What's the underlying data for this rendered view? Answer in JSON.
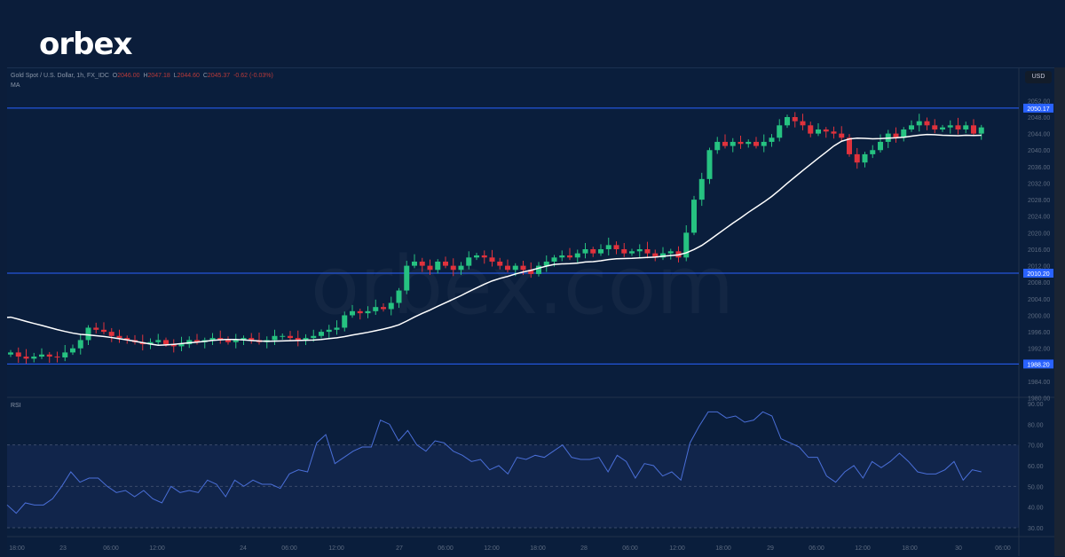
{
  "brand": {
    "logo": "orbex",
    "watermark": "orbex.com"
  },
  "legend": {
    "symbol": "Gold Spot / U.S. Dollar, 1h, FX_IDC",
    "o_label": "O",
    "o": "2046.00",
    "h_label": "H",
    "h": "2047.18",
    "l_label": "L",
    "l": "2044.60",
    "c_label": "C",
    "c": "2045.37",
    "change": "-0.62 (-0.03%)",
    "ma_label": "MA",
    "rsi_label": "RSI"
  },
  "currency": "USD",
  "colors": {
    "up": "#26c281",
    "down": "#e0323c",
    "ma": "#ffffff",
    "level": "#2962ff",
    "rsi": "#4a6fd8"
  },
  "price_axis": {
    "ticks": [
      "2052.00",
      "2048.00",
      "2044.00",
      "2040.00",
      "2036.00",
      "2032.00",
      "2028.00",
      "2024.00",
      "2020.00",
      "2016.00",
      "2012.00",
      "2008.00",
      "2004.00",
      "2000.00",
      "1996.00",
      "1992.00",
      "1984.00",
      "1980.00"
    ],
    "levels": [
      "2050.17",
      "2010.20",
      "1988.20"
    ]
  },
  "rsi_axis": {
    "ticks": [
      "90.00",
      "80.00",
      "70.00",
      "60.00",
      "50.00",
      "40.00",
      "30.00"
    ]
  },
  "time_axis": [
    "18:00",
    "23",
    "06:00",
    "12:00",
    "24",
    "06:00",
    "12:00",
    "27",
    "06:00",
    "12:00",
    "18:00",
    "28",
    "06:00",
    "12:00",
    "18:00",
    "29",
    "06:00",
    "12:00",
    "18:00",
    "30",
    "06:00"
  ],
  "closes": [
    1991,
    1990,
    1989.5,
    1990,
    1990.5,
    1990,
    1989.8,
    1991,
    1992,
    1994,
    1997,
    1996.5,
    1996,
    1995,
    1994.5,
    1994,
    1993.5,
    1993,
    1993.5,
    1994,
    1993,
    1992.5,
    1993,
    1994,
    1993.5,
    1994,
    1994.5,
    1994,
    1993.5,
    1994,
    1994.5,
    1994,
    1993.5,
    1994,
    1995,
    1995,
    1994.5,
    1994,
    1994.5,
    1995,
    1996,
    1996.5,
    1997,
    2000,
    2001,
    2000.5,
    2001,
    2002,
    2001.5,
    2003,
    2006,
    2012,
    2013,
    2012,
    2011,
    2013,
    2012,
    2011,
    2012,
    2014,
    2014.5,
    2014,
    2013,
    2012,
    2011,
    2012,
    2011,
    2010,
    2012,
    2013,
    2014,
    2014.5,
    2014,
    2015,
    2016,
    2015,
    2016,
    2017,
    2016,
    2015,
    2015.5,
    2016,
    2015,
    2014,
    2015,
    2015.5,
    2014,
    2020,
    2028,
    2033,
    2040,
    2042,
    2041,
    2042,
    2041.5,
    2042,
    2041,
    2042,
    2043,
    2046,
    2048,
    2047,
    2046,
    2044,
    2045,
    2044.5,
    2044,
    2043,
    2039,
    2037,
    2039,
    2040,
    2042,
    2044,
    2043,
    2045,
    2046,
    2047,
    2046,
    2045,
    2045.5,
    2046,
    2045,
    2046,
    2044,
    2045.5
  ],
  "rsi": [
    41,
    37,
    42,
    41,
    41,
    44,
    50,
    57,
    52,
    54,
    54,
    50,
    47,
    48,
    45,
    48,
    44,
    42,
    50,
    47,
    48,
    47,
    53,
    51,
    45,
    53,
    50,
    53,
    51,
    51,
    49,
    56,
    58,
    57,
    71,
    75,
    61,
    64,
    67,
    69,
    69,
    82,
    80,
    72,
    77,
    70,
    67,
    72,
    71,
    67,
    65,
    62,
    63,
    58,
    60,
    56,
    64,
    63,
    65,
    64,
    67,
    70,
    64,
    63,
    63,
    64,
    57,
    65,
    62,
    54,
    61,
    60,
    55,
    57,
    53,
    71,
    79,
    86,
    86,
    83,
    84,
    81,
    82,
    86,
    84,
    73,
    71,
    69,
    64,
    64,
    55,
    52,
    57,
    60,
    54,
    62,
    59,
    62,
    66,
    62,
    57,
    56,
    56,
    58,
    62,
    53,
    58,
    57
  ]
}
